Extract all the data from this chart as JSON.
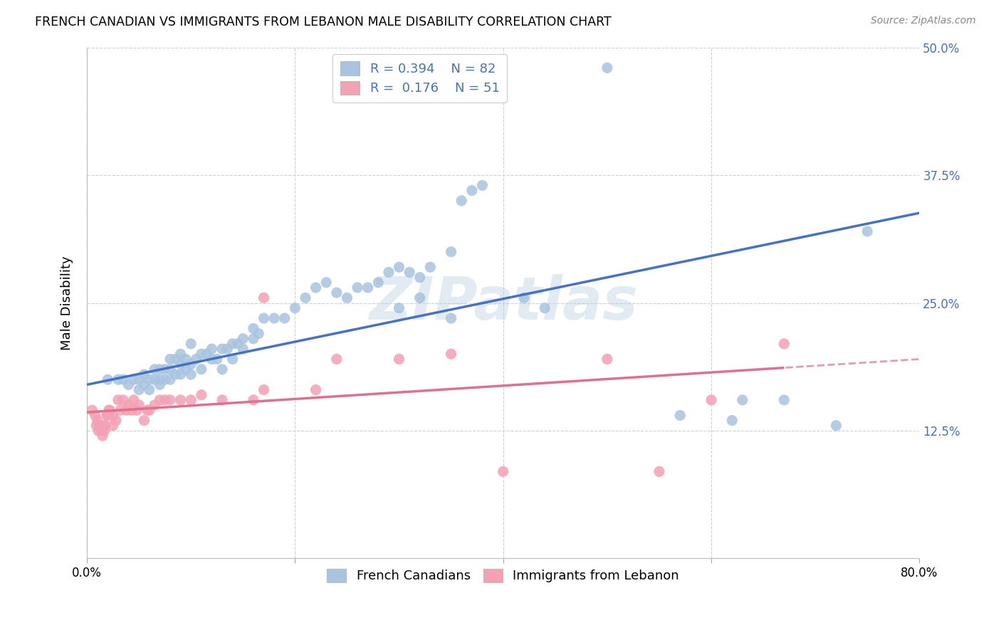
{
  "title": "FRENCH CANADIAN VS IMMIGRANTS FROM LEBANON MALE DISABILITY CORRELATION CHART",
  "source": "Source: ZipAtlas.com",
  "ylabel": "Male Disability",
  "xlim": [
    0.0,
    0.8
  ],
  "ylim": [
    0.0,
    0.5
  ],
  "xticks": [
    0.0,
    0.2,
    0.4,
    0.6,
    0.8
  ],
  "xticklabels": [
    "0.0%",
    "",
    "",
    "",
    "80.0%"
  ],
  "yticks": [
    0.0,
    0.125,
    0.25,
    0.375,
    0.5
  ],
  "yticklabels": [
    "",
    "12.5%",
    "25.0%",
    "37.5%",
    "50.0%"
  ],
  "blue_R": 0.394,
  "blue_N": 82,
  "pink_R": 0.176,
  "pink_N": 51,
  "blue_color": "#a8c4e0",
  "pink_color": "#f4a0b5",
  "blue_line_color": "#4472c4",
  "pink_line_color": "#e07090",
  "watermark": "ZIPatlas",
  "grid_color": "#d0d0d0",
  "blue_scatter_x": [
    0.02,
    0.03,
    0.035,
    0.04,
    0.045,
    0.05,
    0.05,
    0.055,
    0.055,
    0.06,
    0.06,
    0.065,
    0.065,
    0.07,
    0.07,
    0.07,
    0.075,
    0.075,
    0.08,
    0.08,
    0.08,
    0.085,
    0.085,
    0.09,
    0.09,
    0.09,
    0.095,
    0.095,
    0.1,
    0.1,
    0.1,
    0.105,
    0.11,
    0.11,
    0.115,
    0.12,
    0.12,
    0.125,
    0.13,
    0.13,
    0.135,
    0.14,
    0.14,
    0.145,
    0.15,
    0.15,
    0.16,
    0.16,
    0.165,
    0.17,
    0.18,
    0.19,
    0.2,
    0.21,
    0.22,
    0.23,
    0.24,
    0.25,
    0.26,
    0.27,
    0.28,
    0.29,
    0.3,
    0.31,
    0.32,
    0.33,
    0.35,
    0.36,
    0.37,
    0.38,
    0.3,
    0.32,
    0.35,
    0.42,
    0.44,
    0.5,
    0.57,
    0.62,
    0.63,
    0.67,
    0.72,
    0.75
  ],
  "blue_scatter_y": [
    0.175,
    0.175,
    0.175,
    0.17,
    0.175,
    0.165,
    0.175,
    0.17,
    0.18,
    0.165,
    0.175,
    0.175,
    0.185,
    0.17,
    0.175,
    0.185,
    0.175,
    0.185,
    0.175,
    0.185,
    0.195,
    0.18,
    0.195,
    0.18,
    0.19,
    0.2,
    0.185,
    0.195,
    0.18,
    0.19,
    0.21,
    0.195,
    0.185,
    0.2,
    0.2,
    0.195,
    0.205,
    0.195,
    0.185,
    0.205,
    0.205,
    0.195,
    0.21,
    0.21,
    0.205,
    0.215,
    0.215,
    0.225,
    0.22,
    0.235,
    0.235,
    0.235,
    0.245,
    0.255,
    0.265,
    0.27,
    0.26,
    0.255,
    0.265,
    0.265,
    0.27,
    0.28,
    0.285,
    0.28,
    0.275,
    0.285,
    0.3,
    0.35,
    0.36,
    0.365,
    0.245,
    0.255,
    0.235,
    0.255,
    0.245,
    0.48,
    0.14,
    0.135,
    0.155,
    0.155,
    0.13,
    0.32
  ],
  "pink_scatter_x": [
    0.005,
    0.008,
    0.009,
    0.01,
    0.011,
    0.012,
    0.013,
    0.014,
    0.015,
    0.016,
    0.017,
    0.018,
    0.019,
    0.02,
    0.021,
    0.022,
    0.025,
    0.025,
    0.028,
    0.03,
    0.032,
    0.035,
    0.038,
    0.04,
    0.043,
    0.045,
    0.048,
    0.05,
    0.055,
    0.058,
    0.06,
    0.065,
    0.07,
    0.075,
    0.08,
    0.09,
    0.1,
    0.11,
    0.13,
    0.16,
    0.17,
    0.17,
    0.22,
    0.24,
    0.3,
    0.35,
    0.4,
    0.5,
    0.55,
    0.6,
    0.67
  ],
  "pink_scatter_y": [
    0.145,
    0.14,
    0.13,
    0.135,
    0.125,
    0.13,
    0.13,
    0.125,
    0.12,
    0.13,
    0.125,
    0.13,
    0.14,
    0.14,
    0.145,
    0.145,
    0.13,
    0.14,
    0.135,
    0.155,
    0.145,
    0.155,
    0.145,
    0.15,
    0.145,
    0.155,
    0.145,
    0.15,
    0.135,
    0.145,
    0.145,
    0.15,
    0.155,
    0.155,
    0.155,
    0.155,
    0.155,
    0.16,
    0.155,
    0.155,
    0.165,
    0.255,
    0.165,
    0.195,
    0.195,
    0.2,
    0.085,
    0.195,
    0.085,
    0.155,
    0.21
  ],
  "blue_line_intercept": 0.17,
  "blue_line_slope": 0.21,
  "pink_line_intercept": 0.143,
  "pink_line_slope": 0.065
}
